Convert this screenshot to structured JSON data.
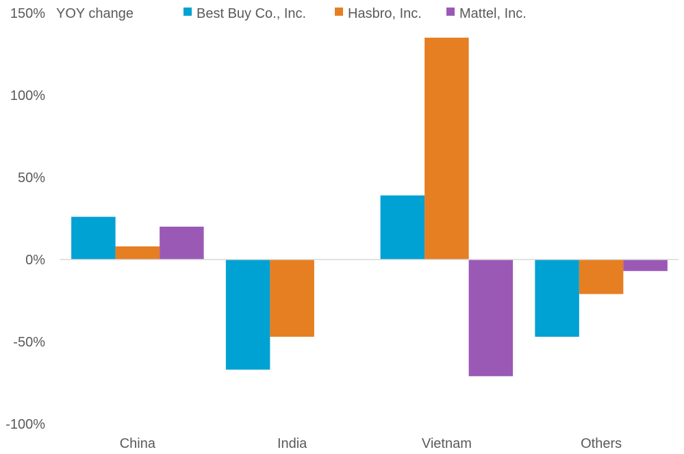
{
  "chart_data": {
    "type": "bar",
    "ylabel": "YOY change",
    "categories": [
      "China",
      "India",
      "Vietnam",
      "Others"
    ],
    "series": [
      {
        "name": "Best Buy Co., Inc.",
        "color": "#00A1D3",
        "values": [
          26,
          -67,
          39,
          -47
        ]
      },
      {
        "name": "Hasbro, Inc.",
        "color": "#E67E22",
        "values": [
          8,
          -47,
          135,
          -21
        ]
      },
      {
        "name": "Mattel, Inc.",
        "color": "#9B59B6",
        "values": [
          20,
          null,
          -71,
          -7
        ]
      }
    ],
    "ylim": [
      -100,
      150
    ],
    "yticks": [
      150,
      100,
      50,
      0,
      -50,
      -100
    ],
    "ytick_labels": [
      "150%",
      "100%",
      "50%",
      "0%",
      "-50%",
      "-100%"
    ],
    "grid": false,
    "legend": "top"
  }
}
